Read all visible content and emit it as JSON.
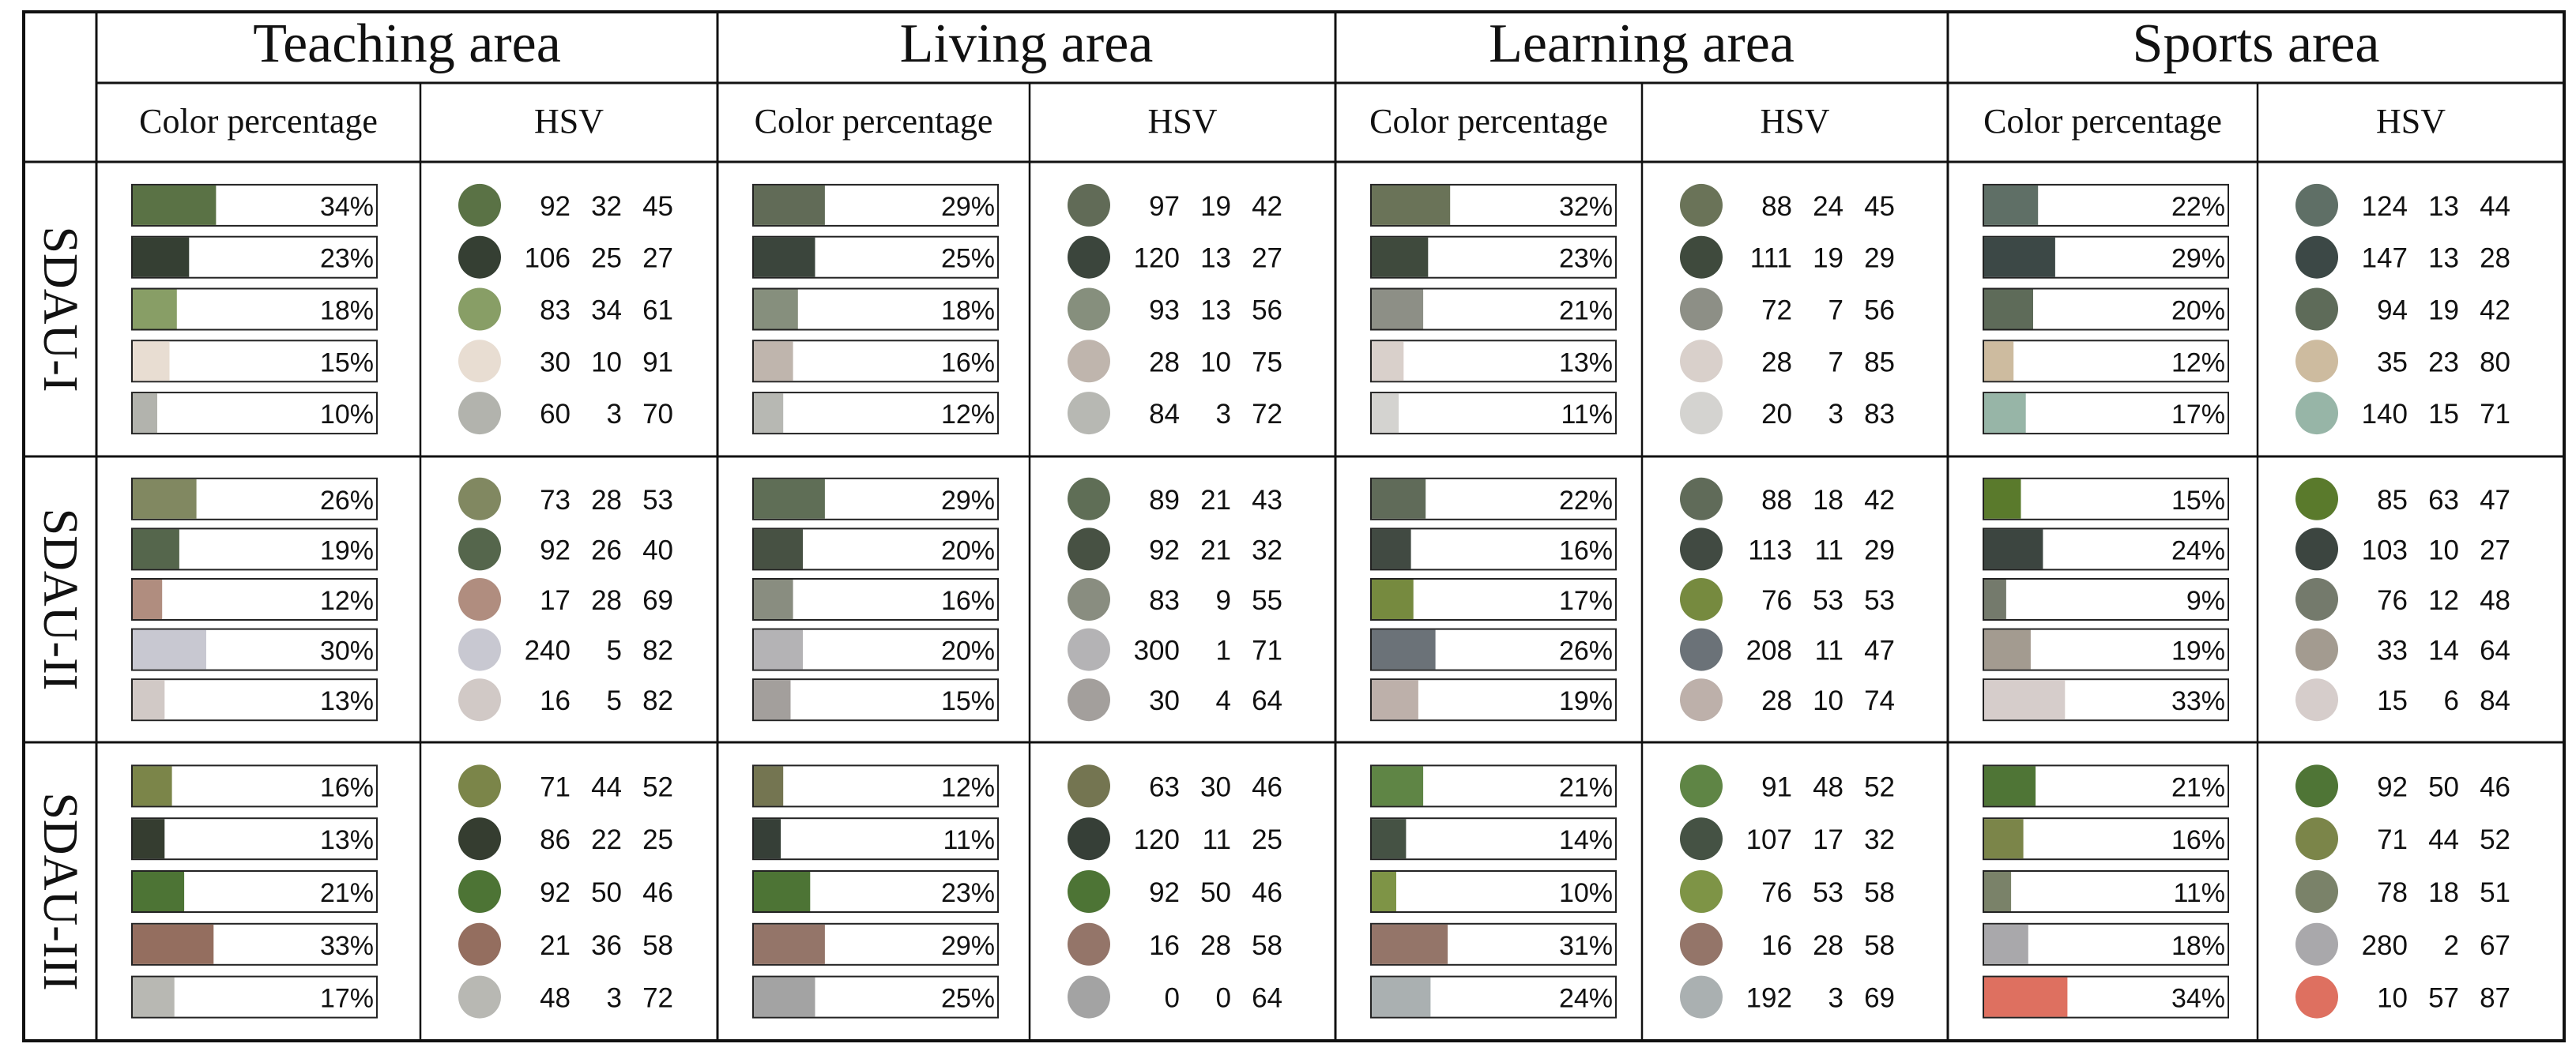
{
  "chart_data": {
    "type": "table",
    "title": "",
    "columns_header": {
      "color_percentage_label": "Color percentage",
      "hsv_label": "HSV"
    },
    "areas": [
      "Teaching area",
      "Living area",
      "Learning area",
      "Sports area"
    ],
    "rows": [
      "SDAU-I",
      "SDAU-II",
      "SDAU-III"
    ],
    "cells": [
      [
        {
          "colors": [
            {
              "hex": "#5a7245",
              "percent": 34,
              "label": "34%",
              "hsv": [
                92,
                32,
                45
              ]
            },
            {
              "hex": "#353f33",
              "percent": 23,
              "label": "23%",
              "hsv": [
                106,
                25,
                27
              ]
            },
            {
              "hex": "#889e66",
              "percent": 18,
              "label": "18%",
              "hsv": [
                83,
                34,
                61
              ]
            },
            {
              "hex": "#e8ddd2",
              "percent": 15,
              "label": "15%",
              "hsv": [
                30,
                10,
                91
              ]
            },
            {
              "hex": "#b2b3ad",
              "percent": 10,
              "label": "10%",
              "hsv": [
                60,
                3,
                70
              ]
            }
          ]
        },
        {
          "colors": [
            {
              "hex": "#616b57",
              "percent": 29,
              "label": "29%",
              "hsv": [
                97,
                19,
                42
              ]
            },
            {
              "hex": "#3b453c",
              "percent": 25,
              "label": "25%",
              "hsv": [
                120,
                13,
                27
              ]
            },
            {
              "hex": "#868f7d",
              "percent": 18,
              "label": "18%",
              "hsv": [
                93,
                13,
                56
              ]
            },
            {
              "hex": "#bfb5ad",
              "percent": 16,
              "label": "16%",
              "hsv": [
                28,
                10,
                75
              ]
            },
            {
              "hex": "#b7b8b3",
              "percent": 12,
              "label": "12%",
              "hsv": [
                84,
                3,
                72
              ]
            }
          ]
        },
        {
          "colors": [
            {
              "hex": "#6a7358",
              "percent": 32,
              "label": "32%",
              "hsv": [
                88,
                24,
                45
              ]
            },
            {
              "hex": "#3f4a3d",
              "percent": 23,
              "label": "23%",
              "hsv": [
                111,
                19,
                29
              ]
            },
            {
              "hex": "#8d8f86",
              "percent": 21,
              "label": "21%",
              "hsv": [
                72,
                7,
                56
              ]
            },
            {
              "hex": "#d9d0cb",
              "percent": 13,
              "label": "13%",
              "hsv": [
                28,
                7,
                85
              ]
            },
            {
              "hex": "#d4d3d0",
              "percent": 11,
              "label": "11%",
              "hsv": [
                20,
                3,
                83
              ]
            }
          ]
        },
        {
          "colors": [
            {
              "hex": "#5f6f66",
              "percent": 22,
              "label": "22%",
              "hsv": [
                124,
                13,
                44
              ]
            },
            {
              "hex": "#3c4846",
              "percent": 29,
              "label": "29%",
              "hsv": [
                147,
                13,
                28
              ]
            },
            {
              "hex": "#5e6b59",
              "percent": 20,
              "label": "20%",
              "hsv": [
                94,
                19,
                42
              ]
            },
            {
              "hex": "#cdbb9f",
              "percent": 12,
              "label": "12%",
              "hsv": [
                35,
                23,
                80
              ]
            },
            {
              "hex": "#97b5a7",
              "percent": 17,
              "label": "17%",
              "hsv": [
                140,
                15,
                71
              ]
            }
          ]
        }
      ],
      [
        {
          "colors": [
            {
              "hex": "#818861",
              "percent": 26,
              "label": "26%",
              "hsv": [
                73,
                28,
                53
              ]
            },
            {
              "hex": "#55664c",
              "percent": 19,
              "label": "19%",
              "hsv": [
                92,
                26,
                40
              ]
            },
            {
              "hex": "#b08d7f",
              "percent": 12,
              "label": "12%",
              "hsv": [
                17,
                28,
                69
              ]
            },
            {
              "hex": "#c8c8d1",
              "percent": 30,
              "label": "30%",
              "hsv": [
                240,
                5,
                82
              ]
            },
            {
              "hex": "#d1c9c6",
              "percent": 13,
              "label": "13%",
              "hsv": [
                16,
                5,
                82
              ]
            }
          ]
        },
        {
          "colors": [
            {
              "hex": "#5f6e56",
              "percent": 29,
              "label": "29%",
              "hsv": [
                89,
                21,
                43
              ]
            },
            {
              "hex": "#475143",
              "percent": 20,
              "label": "20%",
              "hsv": [
                92,
                21,
                32
              ]
            },
            {
              "hex": "#898d80",
              "percent": 16,
              "label": "16%",
              "hsv": [
                83,
                9,
                55
              ]
            },
            {
              "hex": "#b4b3b5",
              "percent": 20,
              "label": "20%",
              "hsv": [
                300,
                1,
                71
              ]
            },
            {
              "hex": "#a39f9c",
              "percent": 15,
              "label": "15%",
              "hsv": [
                30,
                4,
                64
              ]
            }
          ]
        },
        {
          "colors": [
            {
              "hex": "#606b59",
              "percent": 22,
              "label": "22%",
              "hsv": [
                88,
                18,
                42
              ]
            },
            {
              "hex": "#414a42",
              "percent": 16,
              "label": "16%",
              "hsv": [
                113,
                11,
                29
              ]
            },
            {
              "hex": "#768a3f",
              "percent": 17,
              "label": "17%",
              "hsv": [
                76,
                53,
                53
              ]
            },
            {
              "hex": "#6b7278",
              "percent": 26,
              "label": "26%",
              "hsv": [
                208,
                11,
                47
              ]
            },
            {
              "hex": "#bdb0aa",
              "percent": 19,
              "label": "19%",
              "hsv": [
                28,
                10,
                74
              ]
            }
          ]
        },
        {
          "colors": [
            {
              "hex": "#5a7a2c",
              "percent": 15,
              "label": "15%",
              "hsv": [
                85,
                63,
                47
              ]
            },
            {
              "hex": "#3c4540",
              "percent": 24,
              "label": "24%",
              "hsv": [
                103,
                10,
                27
              ]
            },
            {
              "hex": "#747a6c",
              "percent": 9,
              "label": "9%",
              "hsv": [
                76,
                12,
                48
              ]
            },
            {
              "hex": "#a39b90",
              "percent": 19,
              "label": "19%",
              "hsv": [
                33,
                14,
                64
              ]
            },
            {
              "hex": "#d6cdcb",
              "percent": 33,
              "label": "33%",
              "hsv": [
                15,
                6,
                84
              ]
            }
          ]
        }
      ],
      [
        {
          "colors": [
            {
              "hex": "#7b8549",
              "percent": 16,
              "label": "16%",
              "hsv": [
                71,
                44,
                52
              ]
            },
            {
              "hex": "#353d30",
              "percent": 13,
              "label": "13%",
              "hsv": [
                86,
                22,
                25
              ]
            },
            {
              "hex": "#4d7435",
              "percent": 21,
              "label": "21%",
              "hsv": [
                92,
                50,
                46
              ]
            },
            {
              "hex": "#946e5f",
              "percent": 33,
              "label": "33%",
              "hsv": [
                21,
                36,
                58
              ]
            },
            {
              "hex": "#b8b8b3",
              "percent": 17,
              "label": "17%",
              "hsv": [
                48,
                3,
                72
              ]
            }
          ]
        },
        {
          "colors": [
            {
              "hex": "#747551",
              "percent": 12,
              "label": "12%",
              "hsv": [
                63,
                30,
                46
              ]
            },
            {
              "hex": "#363f37",
              "percent": 11,
              "label": "11%",
              "hsv": [
                120,
                11,
                25
              ]
            },
            {
              "hex": "#4d7435",
              "percent": 23,
              "label": "23%",
              "hsv": [
                92,
                50,
                46
              ]
            },
            {
              "hex": "#947569",
              "percent": 29,
              "label": "29%",
              "hsv": [
                16,
                28,
                58
              ]
            },
            {
              "hex": "#a3a3a3",
              "percent": 25,
              "label": "25%",
              "hsv": [
                0,
                0,
                64
              ]
            }
          ]
        },
        {
          "colors": [
            {
              "hex": "#5f8545",
              "percent": 21,
              "label": "21%",
              "hsv": [
                91,
                48,
                52
              ]
            },
            {
              "hex": "#455244",
              "percent": 14,
              "label": "14%",
              "hsv": [
                107,
                17,
                32
              ]
            },
            {
              "hex": "#7e9446",
              "percent": 10,
              "label": "10%",
              "hsv": [
                76,
                53,
                58
              ]
            },
            {
              "hex": "#947569",
              "percent": 31,
              "label": "31%",
              "hsv": [
                16,
                28,
                58
              ]
            },
            {
              "hex": "#aab0b1",
              "percent": 24,
              "label": "24%",
              "hsv": [
                192,
                3,
                69
              ]
            }
          ]
        },
        {
          "colors": [
            {
              "hex": "#4f7536",
              "percent": 21,
              "label": "21%",
              "hsv": [
                92,
                50,
                46
              ]
            },
            {
              "hex": "#7b8549",
              "percent": 16,
              "label": "16%",
              "hsv": [
                71,
                44,
                52
              ]
            },
            {
              "hex": "#7a8269",
              "percent": 11,
              "label": "11%",
              "hsv": [
                78,
                18,
                51
              ]
            },
            {
              "hex": "#a9a8ab",
              "percent": 18,
              "label": "18%",
              "hsv": [
                280,
                2,
                67
              ]
            },
            {
              "hex": "#de7060",
              "percent": 34,
              "label": "34%",
              "hsv": [
                10,
                57,
                87
              ]
            }
          ]
        }
      ]
    ]
  }
}
